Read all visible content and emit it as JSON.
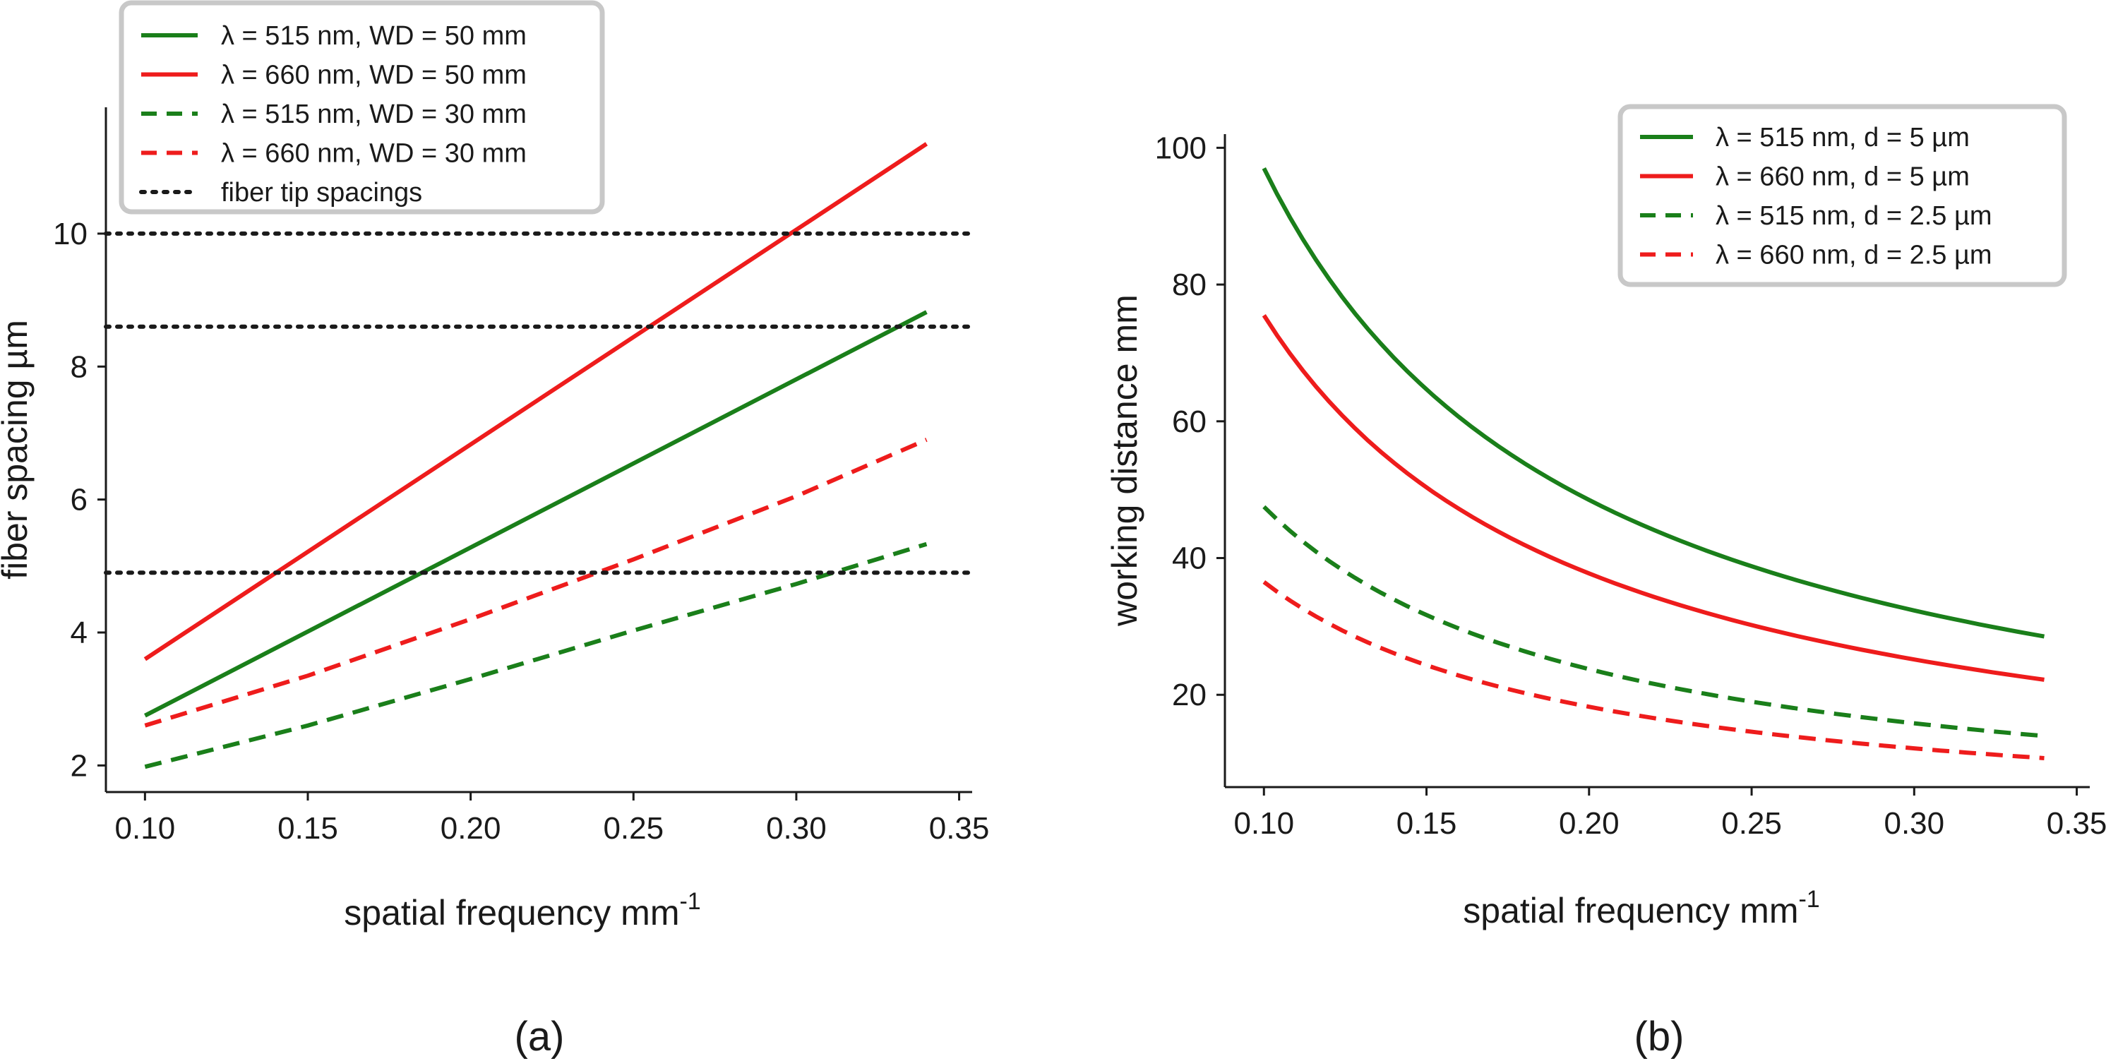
{
  "chart_data": [
    {
      "type": "line",
      "panel": "(a)",
      "xlabel": "spatial frequency mm",
      "xlabel_sup": "-1",
      "ylabel": "fiber spacing µm",
      "xlim": [
        0.088,
        0.354
      ],
      "ylim": [
        1.6,
        11.9
      ],
      "xticks": [
        "0.10",
        "0.15",
        "0.20",
        "0.25",
        "0.30",
        "0.35"
      ],
      "xtick_values": [
        0.1,
        0.15,
        0.2,
        0.25,
        0.3,
        0.35
      ],
      "yticks": [
        "2",
        "4",
        "6",
        "8",
        "10"
      ],
      "ytick_values": [
        2,
        4,
        6,
        8,
        10
      ],
      "legend_position": "top-left",
      "series": [
        {
          "name": "λ = 515 nm, WD = 50 mm",
          "color": "#1a7f1a",
          "dash": "solid",
          "x": [
            0.1,
            0.34
          ],
          "values": [
            2.75,
            8.82
          ]
        },
        {
          "name": "λ = 660 nm, WD = 50 mm",
          "color": "#ee1c1c",
          "dash": "solid",
          "x": [
            0.1,
            0.34
          ],
          "values": [
            3.6,
            11.35
          ]
        },
        {
          "name": "λ = 515 nm, WD = 30 mm",
          "color": "#1a7f1a",
          "dash": "dashed",
          "x": [
            0.1,
            0.15,
            0.2,
            0.25,
            0.3,
            0.34
          ],
          "values": [
            1.98,
            2.6,
            3.3,
            4.03,
            4.73,
            5.33
          ]
        },
        {
          "name": "λ = 660 nm, WD = 30 mm",
          "color": "#ee1c1c",
          "dash": "dashed",
          "x": [
            0.1,
            0.15,
            0.2,
            0.25,
            0.3,
            0.34
          ],
          "values": [
            2.6,
            3.35,
            4.2,
            5.1,
            6.05,
            6.9
          ]
        },
        {
          "name": "fiber tip spacings",
          "color": "#1a1a1a",
          "dash": "dotted",
          "hlines": [
            10.0,
            8.6,
            4.9
          ]
        }
      ]
    },
    {
      "type": "line",
      "panel": "(b)",
      "xlabel": "spatial frequency mm",
      "xlabel_sup": "-1",
      "ylabel": "working distance mm",
      "xlim": [
        0.088,
        0.354
      ],
      "ylim": [
        6.5,
        102
      ],
      "xticks": [
        "0.10",
        "0.15",
        "0.20",
        "0.25",
        "0.30",
        "0.35"
      ],
      "xtick_values": [
        0.1,
        0.15,
        0.2,
        0.25,
        0.3,
        0.35
      ],
      "yticks": [
        "20",
        "40",
        "60",
        "80",
        "100"
      ],
      "ytick_values": [
        20,
        40,
        60,
        80,
        100
      ],
      "legend_position": "top-right",
      "series": [
        {
          "name": "λ = 515 nm, d = 5 µm",
          "color": "#1a7f1a",
          "dash": "solid",
          "k": 9.7
        },
        {
          "name": "λ = 660 nm, d = 5 µm",
          "color": "#ee1c1c",
          "dash": "solid",
          "k": 7.55
        },
        {
          "name": "λ = 515 nm, d = 2.5 µm",
          "color": "#1a7f1a",
          "dash": "dashed",
          "k": 4.75
        },
        {
          "name": "λ = 660 nm, d = 2.5 µm",
          "color": "#ee1c1c",
          "dash": "dashed",
          "k": 3.65
        }
      ],
      "x_range": [
        0.1,
        0.34
      ]
    }
  ]
}
